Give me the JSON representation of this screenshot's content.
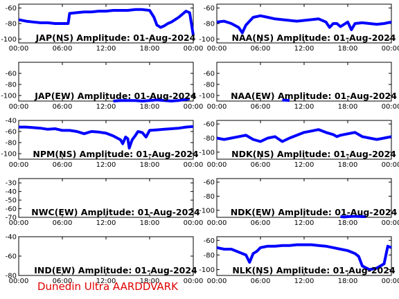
{
  "footer": "Dunedin Ultra AARDDVARK",
  "colors": {
    "trace": "#0000ff",
    "axis": "#000000",
    "footer": "#e00000"
  },
  "xticks": [
    "00:00",
    "06:00",
    "12:00",
    "18:00",
    "00:00"
  ],
  "chart_data": [
    {
      "type": "line",
      "title": "JAP(NS) Amplitude: 01-Aug-2024",
      "xlabel": "",
      "ylabel": "",
      "xlim": [
        0,
        24
      ],
      "ylim": [
        -105,
        -55
      ],
      "yticks": [
        -100,
        -80,
        -60
      ],
      "series": [
        {
          "x": [
            0,
            1,
            2,
            3,
            4,
            5,
            6,
            6.8,
            7,
            8,
            9,
            10,
            11,
            12,
            13,
            14,
            15,
            16,
            17,
            18,
            18.6,
            19,
            19.5,
            20,
            20.5,
            21,
            22,
            23,
            23.5,
            24
          ],
          "values": [
            -75,
            -77,
            -78,
            -79,
            -79,
            -80,
            -80,
            -80,
            -67,
            -66,
            -65,
            -65,
            -64,
            -64,
            -63,
            -63,
            -63,
            -62,
            -62,
            -63,
            -72,
            -82,
            -85,
            -83,
            -80,
            -78,
            -72,
            -64,
            -66,
            -95
          ]
        }
      ]
    },
    {
      "type": "line",
      "title": "NAA(NS) Amplitude: 01-Aug-2024",
      "xlabel": "",
      "ylabel": "",
      "xlim": [
        0,
        24
      ],
      "ylim": [
        -105,
        -55
      ],
      "yticks": [
        -100,
        -80,
        -60
      ],
      "series": [
        {
          "x": [
            0,
            1,
            2,
            3,
            3.5,
            4,
            5,
            6,
            7,
            8,
            9,
            10,
            11,
            12,
            13,
            14,
            15,
            15.5,
            16,
            16.5,
            17,
            18,
            18.5,
            19,
            20,
            21,
            22,
            23,
            24
          ],
          "values": [
            -78,
            -77,
            -80,
            -85,
            -92,
            -82,
            -72,
            -70,
            -72,
            -74,
            -75,
            -76,
            -77,
            -76,
            -75,
            -74,
            -78,
            -85,
            -80,
            -80,
            -84,
            -78,
            -88,
            -80,
            -79,
            -80,
            -81,
            -80,
            -78
          ]
        }
      ]
    },
    {
      "type": "line",
      "title": "JAP(EW) Amplitude: 01-Aug-2024",
      "xlabel": "",
      "ylabel": "",
      "xlim": [
        0,
        24
      ],
      "ylim": [
        -110,
        -40
      ],
      "yticks": [
        -100,
        -80,
        -60
      ],
      "series": [
        {
          "x": [
            13,
            14,
            15,
            16,
            17,
            18,
            19,
            20,
            21,
            22,
            23,
            23.5
          ],
          "values": [
            -110,
            -109,
            -109,
            -109,
            -110,
            -109,
            -108,
            -109,
            -110,
            -109,
            -107,
            -106
          ]
        }
      ]
    },
    {
      "type": "line",
      "title": "NAA(EW) Amplitude: 01-Aug-2024",
      "xlabel": "",
      "ylabel": "",
      "xlim": [
        0,
        24
      ],
      "ylim": [
        -110,
        -40
      ],
      "yticks": [
        -100,
        -80,
        -60
      ],
      "series": [
        {
          "x": [
            9,
            9.5,
            10
          ],
          "values": [
            -108.5,
            -108.5,
            -109
          ]
        }
      ]
    },
    {
      "type": "line",
      "title": "NPM(NS) Amplitude: 01-Aug-2024",
      "xlabel": "",
      "ylabel": "",
      "xlim": [
        0,
        24
      ],
      "ylim": [
        -110,
        -40
      ],
      "yticks": [
        -100,
        -80,
        -60,
        -40
      ],
      "series": [
        {
          "x": [
            0,
            1,
            2,
            3,
            4,
            5,
            6,
            7,
            8,
            9,
            10,
            11,
            12,
            13,
            14,
            14.3,
            14.7,
            15,
            15.2,
            15.6,
            16,
            16.4,
            17,
            17.5,
            18,
            19,
            20,
            21,
            22,
            23,
            24
          ],
          "values": [
            -52,
            -52,
            -53,
            -54,
            -56,
            -55,
            -58,
            -58,
            -60,
            -64,
            -60,
            -61,
            -63,
            -68,
            -75,
            -82,
            -70,
            -73,
            -90,
            -75,
            -68,
            -60,
            -62,
            -70,
            -58,
            -57,
            -56,
            -55,
            -54,
            -52,
            -51
          ]
        }
      ]
    },
    {
      "type": "line",
      "title": "NDK(NS) Amplitude: 01-Aug-2024",
      "xlabel": "",
      "ylabel": "",
      "xlim": [
        0,
        24
      ],
      "ylim": [
        -110,
        -55
      ],
      "yticks": [
        -100,
        -80,
        -60
      ],
      "series": [
        {
          "x": [
            0,
            1,
            2,
            3,
            4,
            5,
            6,
            7,
            8,
            9,
            10,
            11,
            12,
            13,
            14,
            15,
            16,
            16.5,
            17,
            18,
            19,
            20,
            21,
            22,
            23,
            24
          ],
          "values": [
            -80,
            -82,
            -80,
            -78,
            -76,
            -82,
            -85,
            -80,
            -78,
            -85,
            -80,
            -76,
            -72,
            -70,
            -68,
            -72,
            -75,
            -78,
            -76,
            -74,
            -72,
            -78,
            -80,
            -82,
            -80,
            -78
          ]
        }
      ]
    },
    {
      "type": "line",
      "title": "NWC(EW) Amplitude: 01-Aug-2024",
      "xlabel": "",
      "ylabel": "",
      "xlim": [
        0,
        24
      ],
      "ylim": [
        -70,
        -25
      ],
      "yticks": [
        -70,
        -60,
        -50,
        -40,
        -30
      ],
      "series": []
    },
    {
      "type": "line",
      "title": "NDK(EW) Amplitude: 01-Aug-2024",
      "xlabel": "",
      "ylabel": "",
      "xlim": [
        0,
        24
      ],
      "ylim": [
        -110,
        -55
      ],
      "yticks": [
        -100,
        -80,
        -60
      ],
      "series": [
        {
          "x": [
            17,
            17.5,
            18,
            19,
            20,
            20.5
          ],
          "values": [
            -109,
            -109.5,
            -109,
            -108.5,
            -109,
            -109
          ]
        }
      ]
    },
    {
      "type": "line",
      "title": "IND(EW) Amplitude: 01-Aug-2024",
      "xlabel": "",
      "ylabel": "",
      "xlim": [
        0,
        24
      ],
      "ylim": [
        -80,
        -40
      ],
      "yticks": [
        -80,
        -60,
        -40
      ],
      "series": []
    },
    {
      "type": "line",
      "title": "NLK(NS) Amplitude: 01-Aug-2024",
      "xlabel": "",
      "ylabel": "",
      "xlim": [
        0,
        24
      ],
      "ylim": [
        -108,
        -55
      ],
      "yticks": [
        -100,
        -80,
        -60
      ],
      "series": [
        {
          "x": [
            0,
            1,
            2,
            3,
            4,
            4.5,
            5,
            5.5,
            6,
            7,
            8,
            9,
            10,
            11,
            12,
            13,
            14,
            15,
            16,
            17,
            18,
            19,
            19.5,
            20,
            21,
            22,
            23,
            23.5,
            24
          ],
          "values": [
            -70,
            -72,
            -72,
            -76,
            -80,
            -90,
            -78,
            -75,
            -70,
            -68,
            -68,
            -67,
            -67,
            -66,
            -66,
            -66,
            -67,
            -68,
            -70,
            -72,
            -74,
            -78,
            -82,
            -95,
            -100,
            -98,
            -92,
            -68,
            -70
          ]
        }
      ]
    }
  ]
}
